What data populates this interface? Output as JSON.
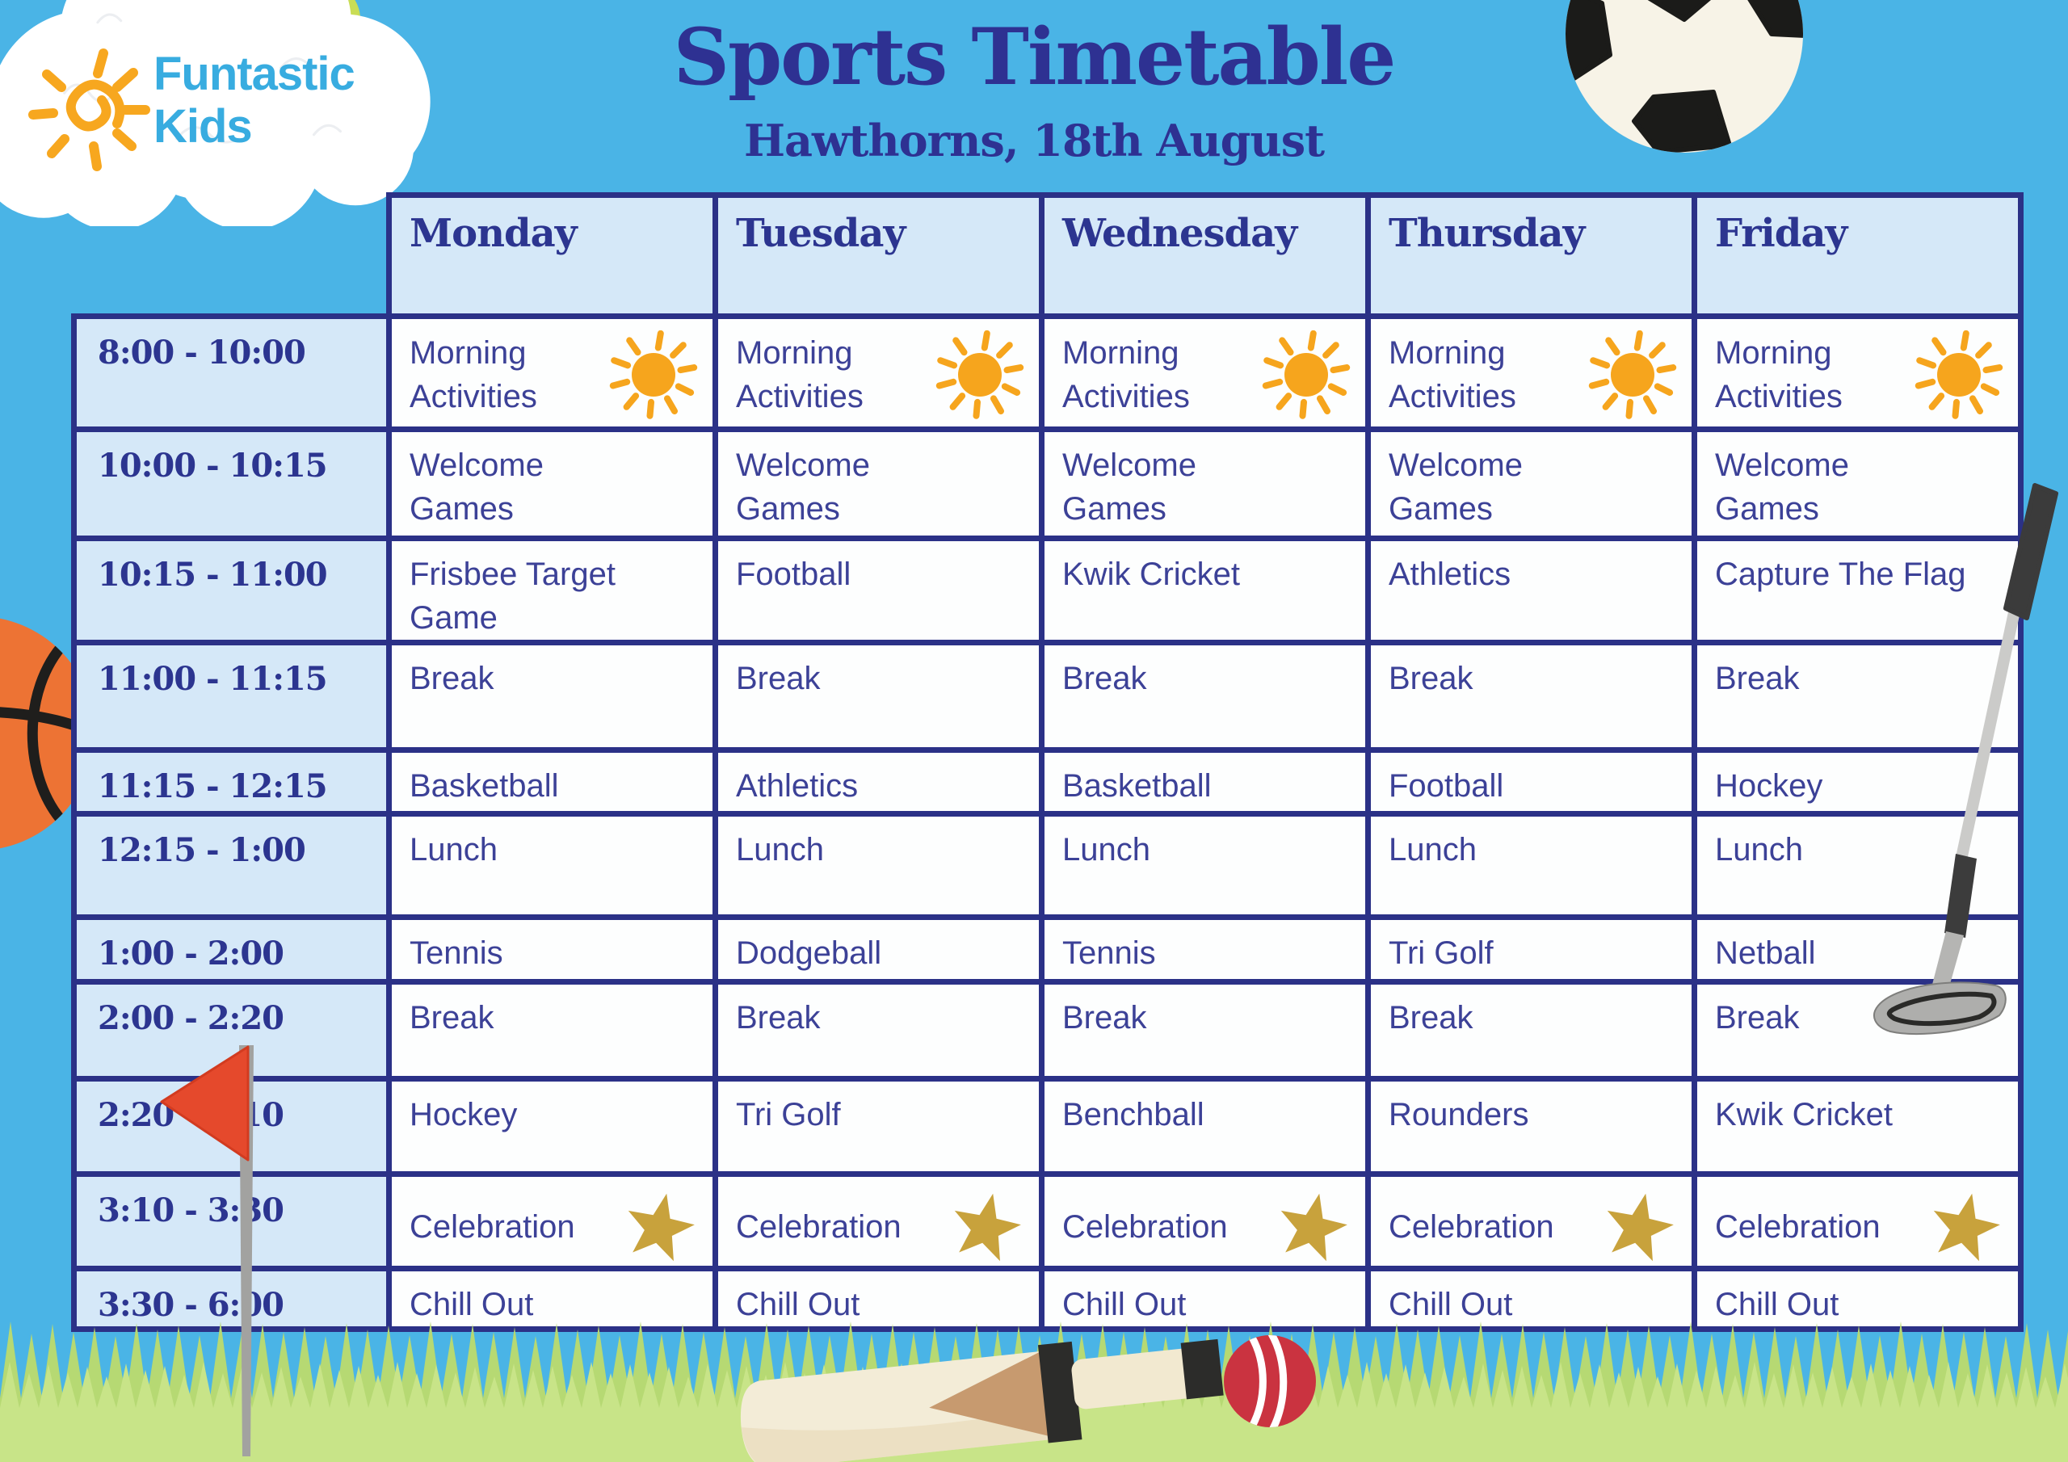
{
  "logo": {
    "brand_line1": "Funtastic",
    "brand_line2": "Kids",
    "icon": "sun-logo-icon"
  },
  "header": {
    "title": "Sports Timetable",
    "subtitle": "Hawthorns, 18th August"
  },
  "table": {
    "day_headers": [
      "Monday",
      "Tuesday",
      "Wednesday",
      "Thursday",
      "Friday"
    ],
    "rows": [
      {
        "time": "8:00 - 10:00",
        "icon": "sun-icon",
        "cells": [
          "Morning Activities",
          "Morning Activities",
          "Morning Activities",
          "Morning Activities",
          "Morning Activities"
        ]
      },
      {
        "time": "10:00 - 10:15",
        "icon": null,
        "cells": [
          "Welcome Games",
          "Welcome Games",
          "Welcome Games",
          "Welcome Games",
          "Welcome Games"
        ]
      },
      {
        "time": "10:15 - 11:00",
        "icon": null,
        "cells": [
          "Frisbee Target Game",
          "Football",
          "Kwik Cricket",
          "Athletics",
          "Capture The Flag"
        ]
      },
      {
        "time": "11:00 - 11:15",
        "icon": null,
        "cells": [
          "Break",
          "Break",
          "Break",
          "Break",
          "Break"
        ]
      },
      {
        "time": "11:15 - 12:15",
        "icon": null,
        "cells": [
          "Basketball",
          "Athletics",
          "Basketball",
          "Football",
          "Hockey"
        ]
      },
      {
        "time": "12:15 - 1:00",
        "icon": null,
        "cells": [
          "Lunch",
          "Lunch",
          "Lunch",
          "Lunch",
          "Lunch"
        ]
      },
      {
        "time": "1:00 - 2:00",
        "icon": null,
        "cells": [
          "Tennis",
          "Dodgeball",
          "Tennis",
          "Tri Golf",
          "Netball"
        ]
      },
      {
        "time": "2:00 - 2:20",
        "icon": null,
        "cells": [
          "Break",
          "Break",
          "Break",
          "Break",
          "Break"
        ]
      },
      {
        "time": "2:20 - 3:10",
        "icon": null,
        "cells": [
          "Hockey",
          "Tri Golf",
          "Benchball",
          "Rounders",
          "Kwik Cricket"
        ]
      },
      {
        "time": "3:10 - 3:30",
        "icon": "star-icon",
        "cells": [
          "Celebration",
          "Celebration",
          "Celebration",
          "Celebration",
          "Celebration"
        ]
      },
      {
        "time": "3:30 - 6:00",
        "icon": null,
        "cells": [
          "Chill Out",
          "Chill Out",
          "Chill Out",
          "Chill Out",
          "Chill Out"
        ]
      }
    ]
  },
  "decorations": [
    "cloud-illustration",
    "tennis-ball-illustration",
    "soccer-ball-illustration",
    "basketball-illustration",
    "golf-club-illustration",
    "red-flag-illustration",
    "cricket-bat-illustration",
    "cricket-ball-illustration",
    "grass-illustration"
  ],
  "colors": {
    "sky": "#4ab4e6",
    "navy_border": "#2b3187",
    "heading_text": "#2c3590",
    "cell_text": "#3c4197",
    "light_cell_bg": "#d5e8f8",
    "white_cell_bg": "#fdfefe",
    "logo_blue": "#38ace0",
    "sun_orange": "#f6a51d",
    "star_gold": "#c8a23c",
    "flag_red": "#e5492c",
    "grass_green": "#c8e488",
    "basketball_orange": "#ed7334",
    "cricket_ball_red": "#ca3340",
    "tennis_green": "#c9dd55"
  }
}
